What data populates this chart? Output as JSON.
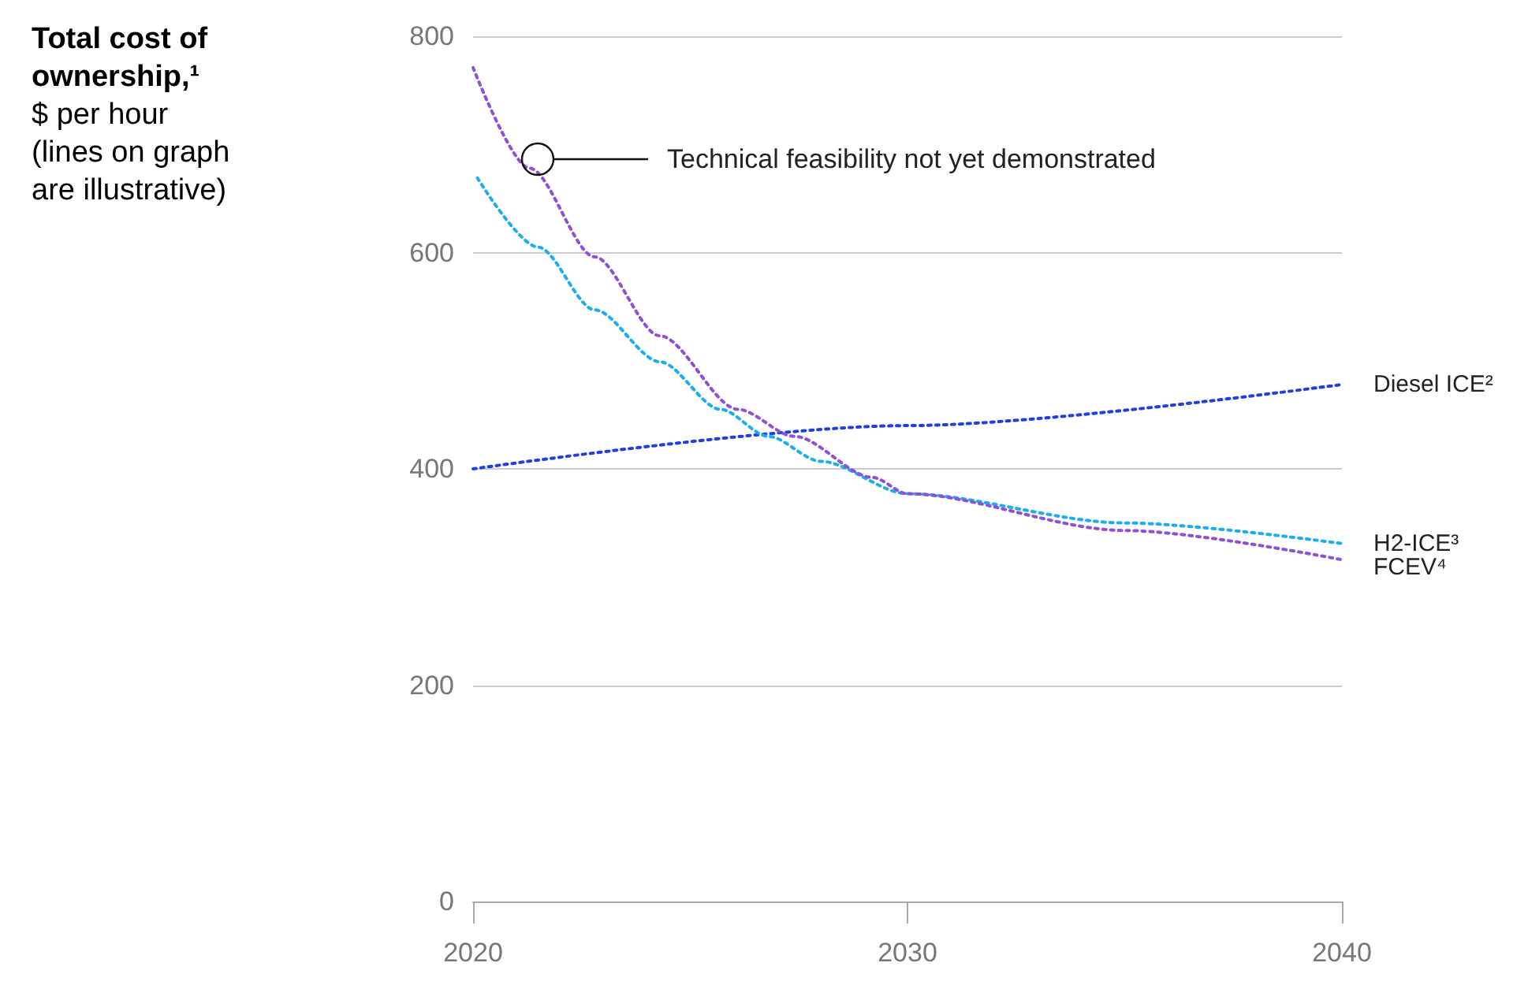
{
  "chart_data": {
    "type": "line",
    "title": "Total cost of ownership,¹",
    "subtitle": "$ per hour\n(lines on graph\nare illustrative)",
    "xlim": [
      2020,
      2040
    ],
    "xticks": [
      2020,
      2030,
      2040
    ],
    "ylim": [
      0,
      800
    ],
    "yticks": [
      0,
      200,
      400,
      600,
      800
    ],
    "grid": "y",
    "legend": false,
    "marker": "none",
    "line_style": "dotted",
    "annotations": [
      "Technical feasibility not yet demonstrated"
    ],
    "series": [
      {
        "name": "Diesel ICE²",
        "color": "#1f3fe6",
        "x": [
          2020,
          2030,
          2040
        ],
        "values": [
          400,
          440,
          478
        ]
      },
      {
        "name": "H2-ICE³",
        "color": "#1aaef0",
        "x": [
          2020.1,
          2021.5,
          2022.8,
          2024.3,
          2025.7,
          2026.8,
          2028,
          2030,
          2035,
          2040
        ],
        "values": [
          669,
          605,
          547,
          499,
          455,
          430,
          407,
          377,
          350,
          331
        ]
      },
      {
        "name": "FCEV⁴",
        "color": "#8f4fd6",
        "x": [
          2020,
          2021.3,
          2022.8,
          2024.3,
          2026.1,
          2027.4,
          2029.2,
          2030,
          2035,
          2040
        ],
        "values": [
          771,
          678,
          596,
          523,
          455,
          430,
          392,
          377,
          343,
          316
        ]
      }
    ]
  }
}
